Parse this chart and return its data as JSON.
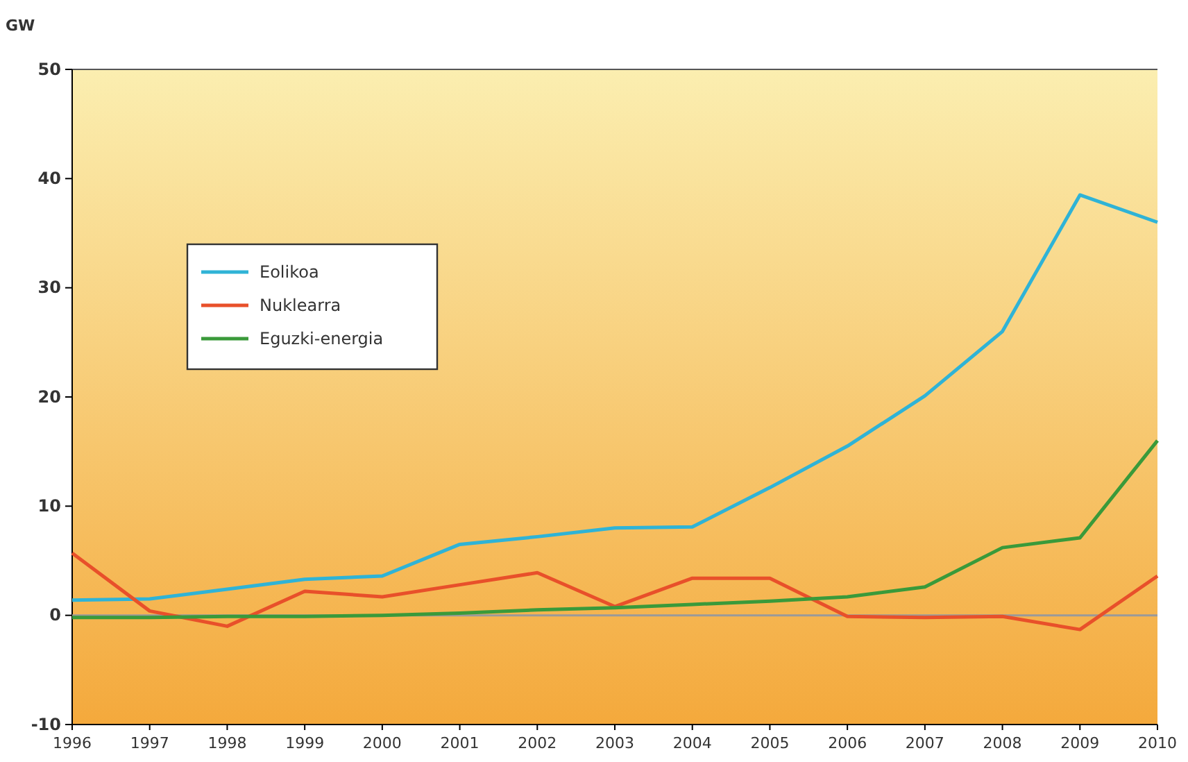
{
  "chart_data": {
    "type": "line",
    "ylabel": "GW",
    "x": [
      1996,
      1997,
      1998,
      1999,
      2000,
      2001,
      2002,
      2003,
      2004,
      2005,
      2006,
      2007,
      2008,
      2009,
      2010
    ],
    "xlim": [
      1996,
      2010
    ],
    "xticks": [
      1996,
      1997,
      1998,
      1999,
      2000,
      2001,
      2002,
      2003,
      2004,
      2005,
      2006,
      2007,
      2008,
      2009,
      2010
    ],
    "ylim": [
      -10,
      50
    ],
    "yticks": [
      -10,
      0,
      10,
      20,
      30,
      40,
      50
    ],
    "series": [
      {
        "name": "Eolikoa",
        "color": "#2fb3d6",
        "values": [
          1.4,
          1.5,
          2.4,
          3.3,
          3.6,
          6.5,
          7.2,
          8.0,
          8.1,
          11.7,
          15.5,
          20.1,
          26.0,
          38.5,
          36.0
        ]
      },
      {
        "name": "Nuklearra",
        "color": "#e8502a",
        "values": [
          5.7,
          0.4,
          -1.0,
          2.2,
          1.7,
          2.8,
          3.9,
          0.8,
          3.4,
          3.4,
          -0.1,
          -0.2,
          -0.1,
          -1.3,
          3.6
        ]
      },
      {
        "name": "Eguzki-energia",
        "color": "#3a9a3a",
        "values": [
          -0.2,
          -0.2,
          -0.1,
          -0.1,
          0.0,
          0.2,
          0.5,
          0.7,
          1.0,
          1.3,
          1.7,
          2.6,
          6.2,
          7.1,
          16.0
        ]
      }
    ],
    "ref_lines": [
      {
        "axis": "y",
        "value": 0,
        "color": "#9a9a9a"
      }
    ],
    "legend": "top left",
    "grid": false,
    "marker": "none",
    "line_style": "solid"
  }
}
